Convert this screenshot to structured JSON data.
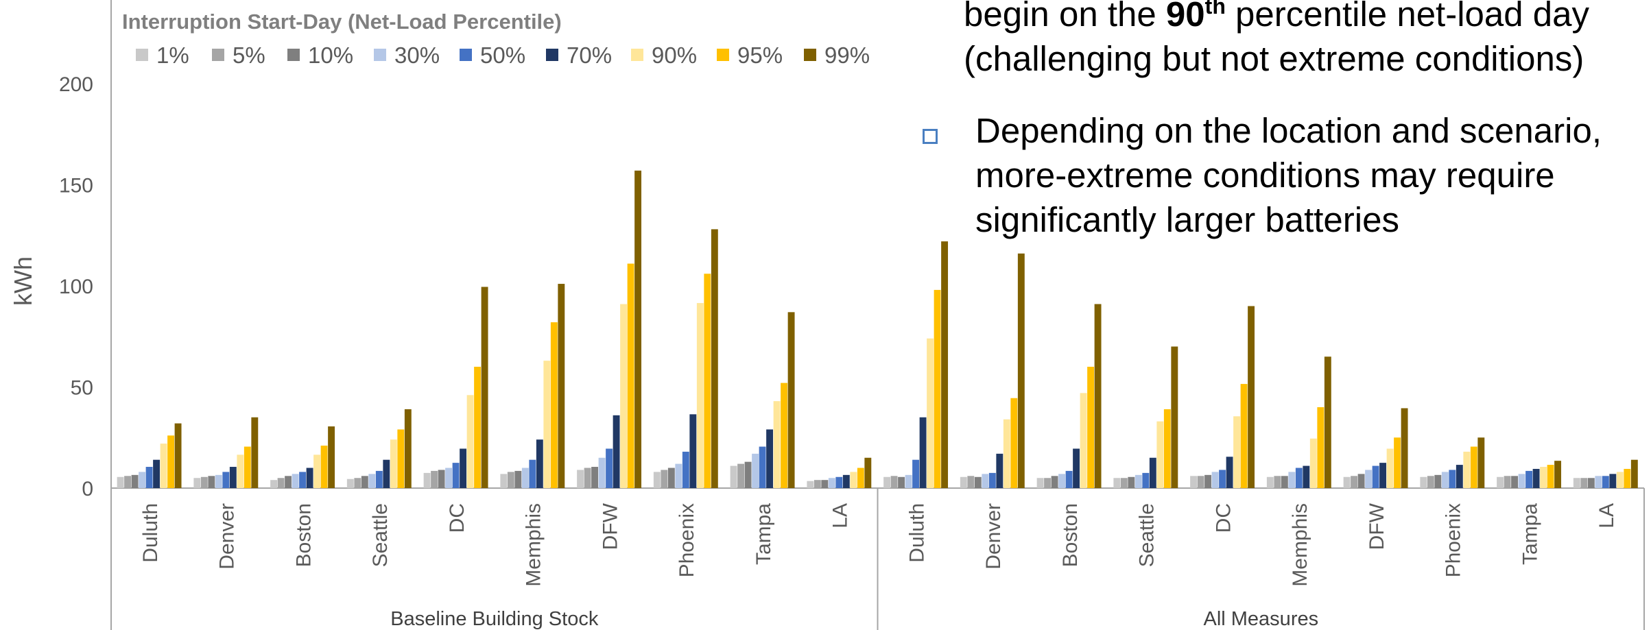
{
  "notes": {
    "first_line_1_pre": "begin on the ",
    "first_line_1_bold": "90",
    "first_line_1_sup": "th",
    "first_line_1_post": " percentile net-load day",
    "first_line_2": "(challenging but not extreme conditions)",
    "second": "Depending on the location and scenario, more-extreme conditions may require significantly larger batteries"
  },
  "colors": {
    "series": [
      "#c9c9c9",
      "#a5a5a5",
      "#7f7f7f",
      "#b4c7e7",
      "#4472c4",
      "#203864",
      "#ffe699",
      "#ffc000",
      "#7f6000"
    ],
    "axis": "#a6a6a6",
    "bullet": "#4a7fc1"
  },
  "chart_data": {
    "type": "bar",
    "legend_title": "Interruption Start-Day (Net-Load Percentile)",
    "ylabel": "kWh",
    "ylim": [
      0,
      200
    ],
    "yticks": [
      0,
      50,
      100,
      150,
      200
    ],
    "groups": [
      {
        "name": "Baseline Building Stock",
        "categories": [
          "Duluth",
          "Denver",
          "Boston",
          "Seattle",
          "DC",
          "Memphis",
          "DFW",
          "Phoenix",
          "Tampa",
          "LA"
        ]
      },
      {
        "name": "All Measures",
        "categories": [
          "Duluth",
          "Denver",
          "Boston",
          "Seattle",
          "DC",
          "Memphis",
          "DFW",
          "Phoenix",
          "Tampa",
          "LA"
        ]
      }
    ],
    "series": [
      {
        "name": "1%",
        "values": [
          5.5,
          5,
          4,
          4.5,
          7.5,
          7,
          9,
          8,
          11,
          3.5,
          5.5,
          5.5,
          5,
          5,
          6,
          5.5,
          5.5,
          5.5,
          5.5,
          5
        ]
      },
      {
        "name": "5%",
        "values": [
          6,
          5.5,
          5,
          5,
          8.5,
          8,
          10,
          9,
          12,
          4,
          6,
          6,
          5,
          5,
          6,
          6,
          6,
          6,
          6,
          5
        ]
      },
      {
        "name": "10%",
        "values": [
          6.5,
          6,
          6,
          6,
          9,
          8.5,
          10.5,
          10,
          13,
          4,
          5.5,
          5.5,
          6,
          5.5,
          6.5,
          6,
          7,
          6.5,
          6,
          5
        ]
      },
      {
        "name": "30%",
        "values": [
          8,
          6.5,
          7,
          7,
          10,
          10,
          15,
          12,
          17,
          5,
          6.5,
          7,
          7,
          6.5,
          8,
          8,
          9,
          8,
          7,
          6
        ]
      },
      {
        "name": "50%",
        "values": [
          10.5,
          8,
          8,
          8.5,
          12.5,
          14,
          19.5,
          18,
          20.5,
          5.5,
          14,
          7.5,
          8.5,
          7.5,
          9,
          10,
          11,
          9,
          8.5,
          6
        ]
      },
      {
        "name": "70%",
        "values": [
          14,
          10.5,
          10,
          14,
          19.5,
          24,
          36,
          36.5,
          29,
          6.5,
          35,
          17,
          19.5,
          15,
          15.5,
          11,
          12.5,
          11.5,
          9.5,
          7
        ]
      },
      {
        "name": "90%",
        "values": [
          22,
          16.5,
          16.5,
          24,
          46,
          63,
          91,
          91.5,
          43,
          8,
          74,
          34,
          47,
          33,
          35.5,
          24.5,
          19.5,
          18,
          10.5,
          8
        ]
      },
      {
        "name": "95%",
        "values": [
          26,
          20.5,
          21,
          29,
          60,
          82,
          111,
          106,
          52,
          10,
          98,
          44.5,
          60,
          39,
          51.5,
          40,
          25,
          20.5,
          11.5,
          9.5
        ]
      },
      {
        "name": "99%",
        "values": [
          32,
          35,
          30.5,
          39,
          99.5,
          101,
          157,
          128,
          87,
          15,
          122,
          116,
          91,
          70,
          90,
          65,
          39.5,
          25,
          13.5,
          14
        ]
      }
    ]
  }
}
